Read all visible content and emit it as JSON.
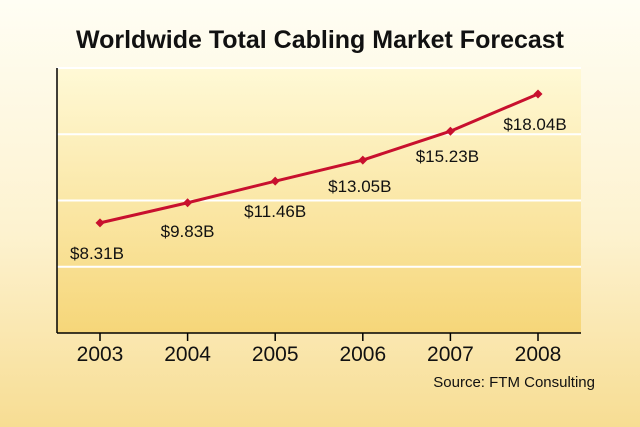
{
  "chart_data": {
    "type": "line",
    "title": "Worldwide Total Cabling Market Forecast",
    "source": "Source: FTM Consulting",
    "categories": [
      "2003",
      "2004",
      "2005",
      "2006",
      "2007",
      "2008"
    ],
    "series": [
      {
        "values": [
          8.31,
          9.83,
          11.46,
          13.05,
          15.23,
          18.04
        ],
        "labels": [
          "$8.31B",
          "$9.83B",
          "$11.46B",
          "$13.05B",
          "$15.23B",
          "$18.04B"
        ]
      }
    ],
    "ylim": [
      0,
      20
    ],
    "grid": true,
    "colors": {
      "line": "#c8102e",
      "grid": "#ffffff",
      "axis": "#000000",
      "text": "#111111",
      "plot_top": "#fff9d6",
      "plot_bottom": "#f6d679"
    }
  }
}
